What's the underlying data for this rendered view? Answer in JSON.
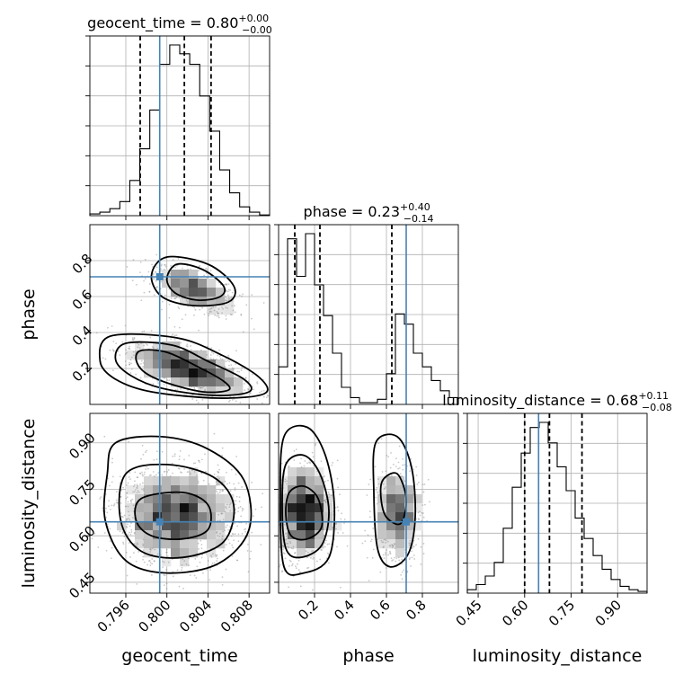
{
  "chart_data": {
    "type": "corner",
    "parameters": [
      {
        "key": "geocent_time",
        "label": "geocent_time",
        "title": {
          "prefix": "geocent_time = ",
          "median": "0.80",
          "plus": "+0.00",
          "minus": "−0.00"
        },
        "range": [
          0.7925,
          0.81
        ],
        "ticks": [
          0.796,
          0.8,
          0.804,
          0.808
        ],
        "tick_labels": [
          "0.796",
          "0.800",
          "0.804",
          "0.808"
        ],
        "quantiles": [
          0.7974,
          0.8017,
          0.8043
        ],
        "truth": 0.7993,
        "histogram": [
          1,
          2,
          4,
          8,
          20,
          38,
          60,
          86,
          97,
          92,
          86,
          68,
          48,
          26,
          13,
          5,
          2,
          0.4
        ]
      },
      {
        "key": "phase",
        "label": "phase",
        "title": {
          "prefix": "phase = ",
          "median": "0.23",
          "plus": "+0.40",
          "minus": "−0.14"
        },
        "range": [
          0.0,
          1.0
        ],
        "ticks": [
          0.2,
          0.4,
          0.6,
          0.8
        ],
        "tick_labels": [
          "0.2",
          "0.4",
          "0.6",
          "0.8"
        ],
        "quantiles": [
          0.09,
          0.23,
          0.63
        ],
        "truth": 0.71,
        "histogram": [
          22,
          97,
          75,
          100,
          70,
          52,
          30,
          10,
          4,
          1,
          1,
          3,
          18,
          53,
          47,
          30,
          22,
          14,
          8,
          4
        ]
      },
      {
        "key": "luminosity_distance",
        "label": "luminosity_distance",
        "title": {
          "prefix": "luminosity_distance = ",
          "median": "0.68",
          "plus": "+0.11",
          "minus": "−0.08"
        },
        "range": [
          0.415,
          0.995
        ],
        "ticks": [
          0.45,
          0.6,
          0.75,
          0.9
        ],
        "tick_labels": [
          "0.45",
          "0.60",
          "0.75",
          "0.90"
        ],
        "quantiles": [
          0.6,
          0.68,
          0.785
        ],
        "truth": 0.645,
        "histogram": [
          2,
          5,
          10,
          18,
          38,
          62,
          82,
          97,
          100,
          88,
          74,
          60,
          44,
          32,
          22,
          14,
          8,
          4,
          2,
          1
        ]
      }
    ],
    "pairs": [
      {
        "x": "geocent_time",
        "y": "phase",
        "truth": [
          0.7993,
          0.71
        ],
        "clusters": [
          {
            "center": [
              0.8025,
              0.64
            ],
            "spread": [
              0.0022,
              0.07
            ],
            "n": 1100,
            "corr": -0.55
          },
          {
            "center": [
              0.802,
              0.2
            ],
            "spread": [
              0.003,
              0.08
            ],
            "n": 2200,
            "corr": -0.6
          }
        ],
        "contours": [
          [
            [
              0.801,
              0.78
            ],
            [
              0.8035,
              0.75
            ],
            [
              0.8055,
              0.66
            ],
            [
              0.8052,
              0.6
            ],
            [
              0.803,
              0.58
            ],
            [
              0.8008,
              0.62
            ],
            [
              0.8,
              0.7
            ]
          ],
          [
            [
              0.8,
              0.82
            ],
            [
              0.804,
              0.78
            ],
            [
              0.8065,
              0.66
            ],
            [
              0.806,
              0.57
            ],
            [
              0.8025,
              0.55
            ],
            [
              0.7995,
              0.6
            ],
            [
              0.7985,
              0.72
            ]
          ],
          [
            [
              0.7975,
              0.3
            ],
            [
              0.8,
              0.29
            ],
            [
              0.803,
              0.21
            ],
            [
              0.8055,
              0.13
            ],
            [
              0.806,
              0.08
            ],
            [
              0.8035,
              0.07
            ],
            [
              0.8,
              0.12
            ],
            [
              0.7978,
              0.18
            ],
            [
              0.797,
              0.25
            ]
          ],
          [
            [
              0.796,
              0.34
            ],
            [
              0.8005,
              0.33
            ],
            [
              0.804,
              0.24
            ],
            [
              0.8075,
              0.14
            ],
            [
              0.808,
              0.07
            ],
            [
              0.8045,
              0.05
            ],
            [
              0.7995,
              0.09
            ],
            [
              0.7965,
              0.16
            ],
            [
              0.795,
              0.25
            ]
          ],
          [
            [
              0.7945,
              0.38
            ],
            [
              0.801,
              0.37
            ],
            [
              0.8055,
              0.27
            ],
            [
              0.809,
              0.15
            ],
            [
              0.8095,
              0.06
            ],
            [
              0.805,
              0.035
            ],
            [
              0.7985,
              0.07
            ],
            [
              0.795,
              0.14
            ],
            [
              0.7935,
              0.24
            ]
          ]
        ]
      },
      {
        "x": "geocent_time",
        "y": "luminosity_distance",
        "truth": [
          0.7993,
          0.645
        ],
        "clusters": [
          {
            "center": [
              0.801,
              0.665
            ],
            "spread": [
              0.003,
              0.08
            ],
            "n": 3200,
            "corr": 0.0
          }
        ],
        "contours": [
          [
            [
              0.7975,
              0.72
            ],
            [
              0.8015,
              0.74
            ],
            [
              0.804,
              0.7
            ],
            [
              0.804,
              0.62
            ],
            [
              0.8015,
              0.59
            ],
            [
              0.7985,
              0.6
            ],
            [
              0.797,
              0.65
            ]
          ],
          [
            [
              0.796,
              0.8
            ],
            [
              0.8,
              0.83
            ],
            [
              0.8045,
              0.79
            ],
            [
              0.8065,
              0.7
            ],
            [
              0.8055,
              0.58
            ],
            [
              0.8015,
              0.53
            ],
            [
              0.7975,
              0.55
            ],
            [
              0.7955,
              0.65
            ]
          ],
          [
            [
              0.795,
              0.9
            ],
            [
              0.7995,
              0.92
            ],
            [
              0.804,
              0.88
            ],
            [
              0.8075,
              0.78
            ],
            [
              0.808,
              0.62
            ],
            [
              0.805,
              0.51
            ],
            [
              0.8,
              0.48
            ],
            [
              0.796,
              0.52
            ],
            [
              0.794,
              0.65
            ],
            [
              0.7942,
              0.8
            ]
          ]
        ]
      },
      {
        "x": "phase",
        "y": "luminosity_distance",
        "truth": [
          0.71,
          0.645
        ],
        "clusters": [
          {
            "center": [
              0.14,
              0.675
            ],
            "spread": [
              0.08,
              0.08
            ],
            "n": 2000,
            "corr": 0.0
          },
          {
            "center": [
              0.66,
              0.67
            ],
            "spread": [
              0.07,
              0.08
            ],
            "n": 1200,
            "corr": 0.0
          }
        ],
        "contours": [
          [
            [
              0.06,
              0.74
            ],
            [
              0.14,
              0.76
            ],
            [
              0.22,
              0.72
            ],
            [
              0.24,
              0.63
            ],
            [
              0.16,
              0.59
            ],
            [
              0.07,
              0.6
            ],
            [
              0.04,
              0.67
            ]
          ],
          [
            [
              0.04,
              0.83
            ],
            [
              0.14,
              0.86
            ],
            [
              0.23,
              0.8
            ],
            [
              0.28,
              0.68
            ],
            [
              0.24,
              0.57
            ],
            [
              0.12,
              0.53
            ],
            [
              0.04,
              0.56
            ],
            [
              0.02,
              0.7
            ]
          ],
          [
            [
              0.03,
              0.92
            ],
            [
              0.16,
              0.95
            ],
            [
              0.26,
              0.86
            ],
            [
              0.31,
              0.7
            ],
            [
              0.28,
              0.53
            ],
            [
              0.14,
              0.48
            ],
            [
              0.03,
              0.5
            ],
            [
              0.01,
              0.72
            ]
          ],
          [
            [
              0.58,
              0.78
            ],
            [
              0.66,
              0.8
            ],
            [
              0.71,
              0.72
            ],
            [
              0.68,
              0.64
            ],
            [
              0.6,
              0.66
            ],
            [
              0.57,
              0.72
            ]
          ],
          [
            [
              0.54,
              0.9
            ],
            [
              0.66,
              0.92
            ],
            [
              0.74,
              0.82
            ],
            [
              0.76,
              0.66
            ],
            [
              0.72,
              0.54
            ],
            [
              0.62,
              0.5
            ],
            [
              0.55,
              0.56
            ],
            [
              0.53,
              0.74
            ]
          ]
        ]
      }
    ]
  }
}
